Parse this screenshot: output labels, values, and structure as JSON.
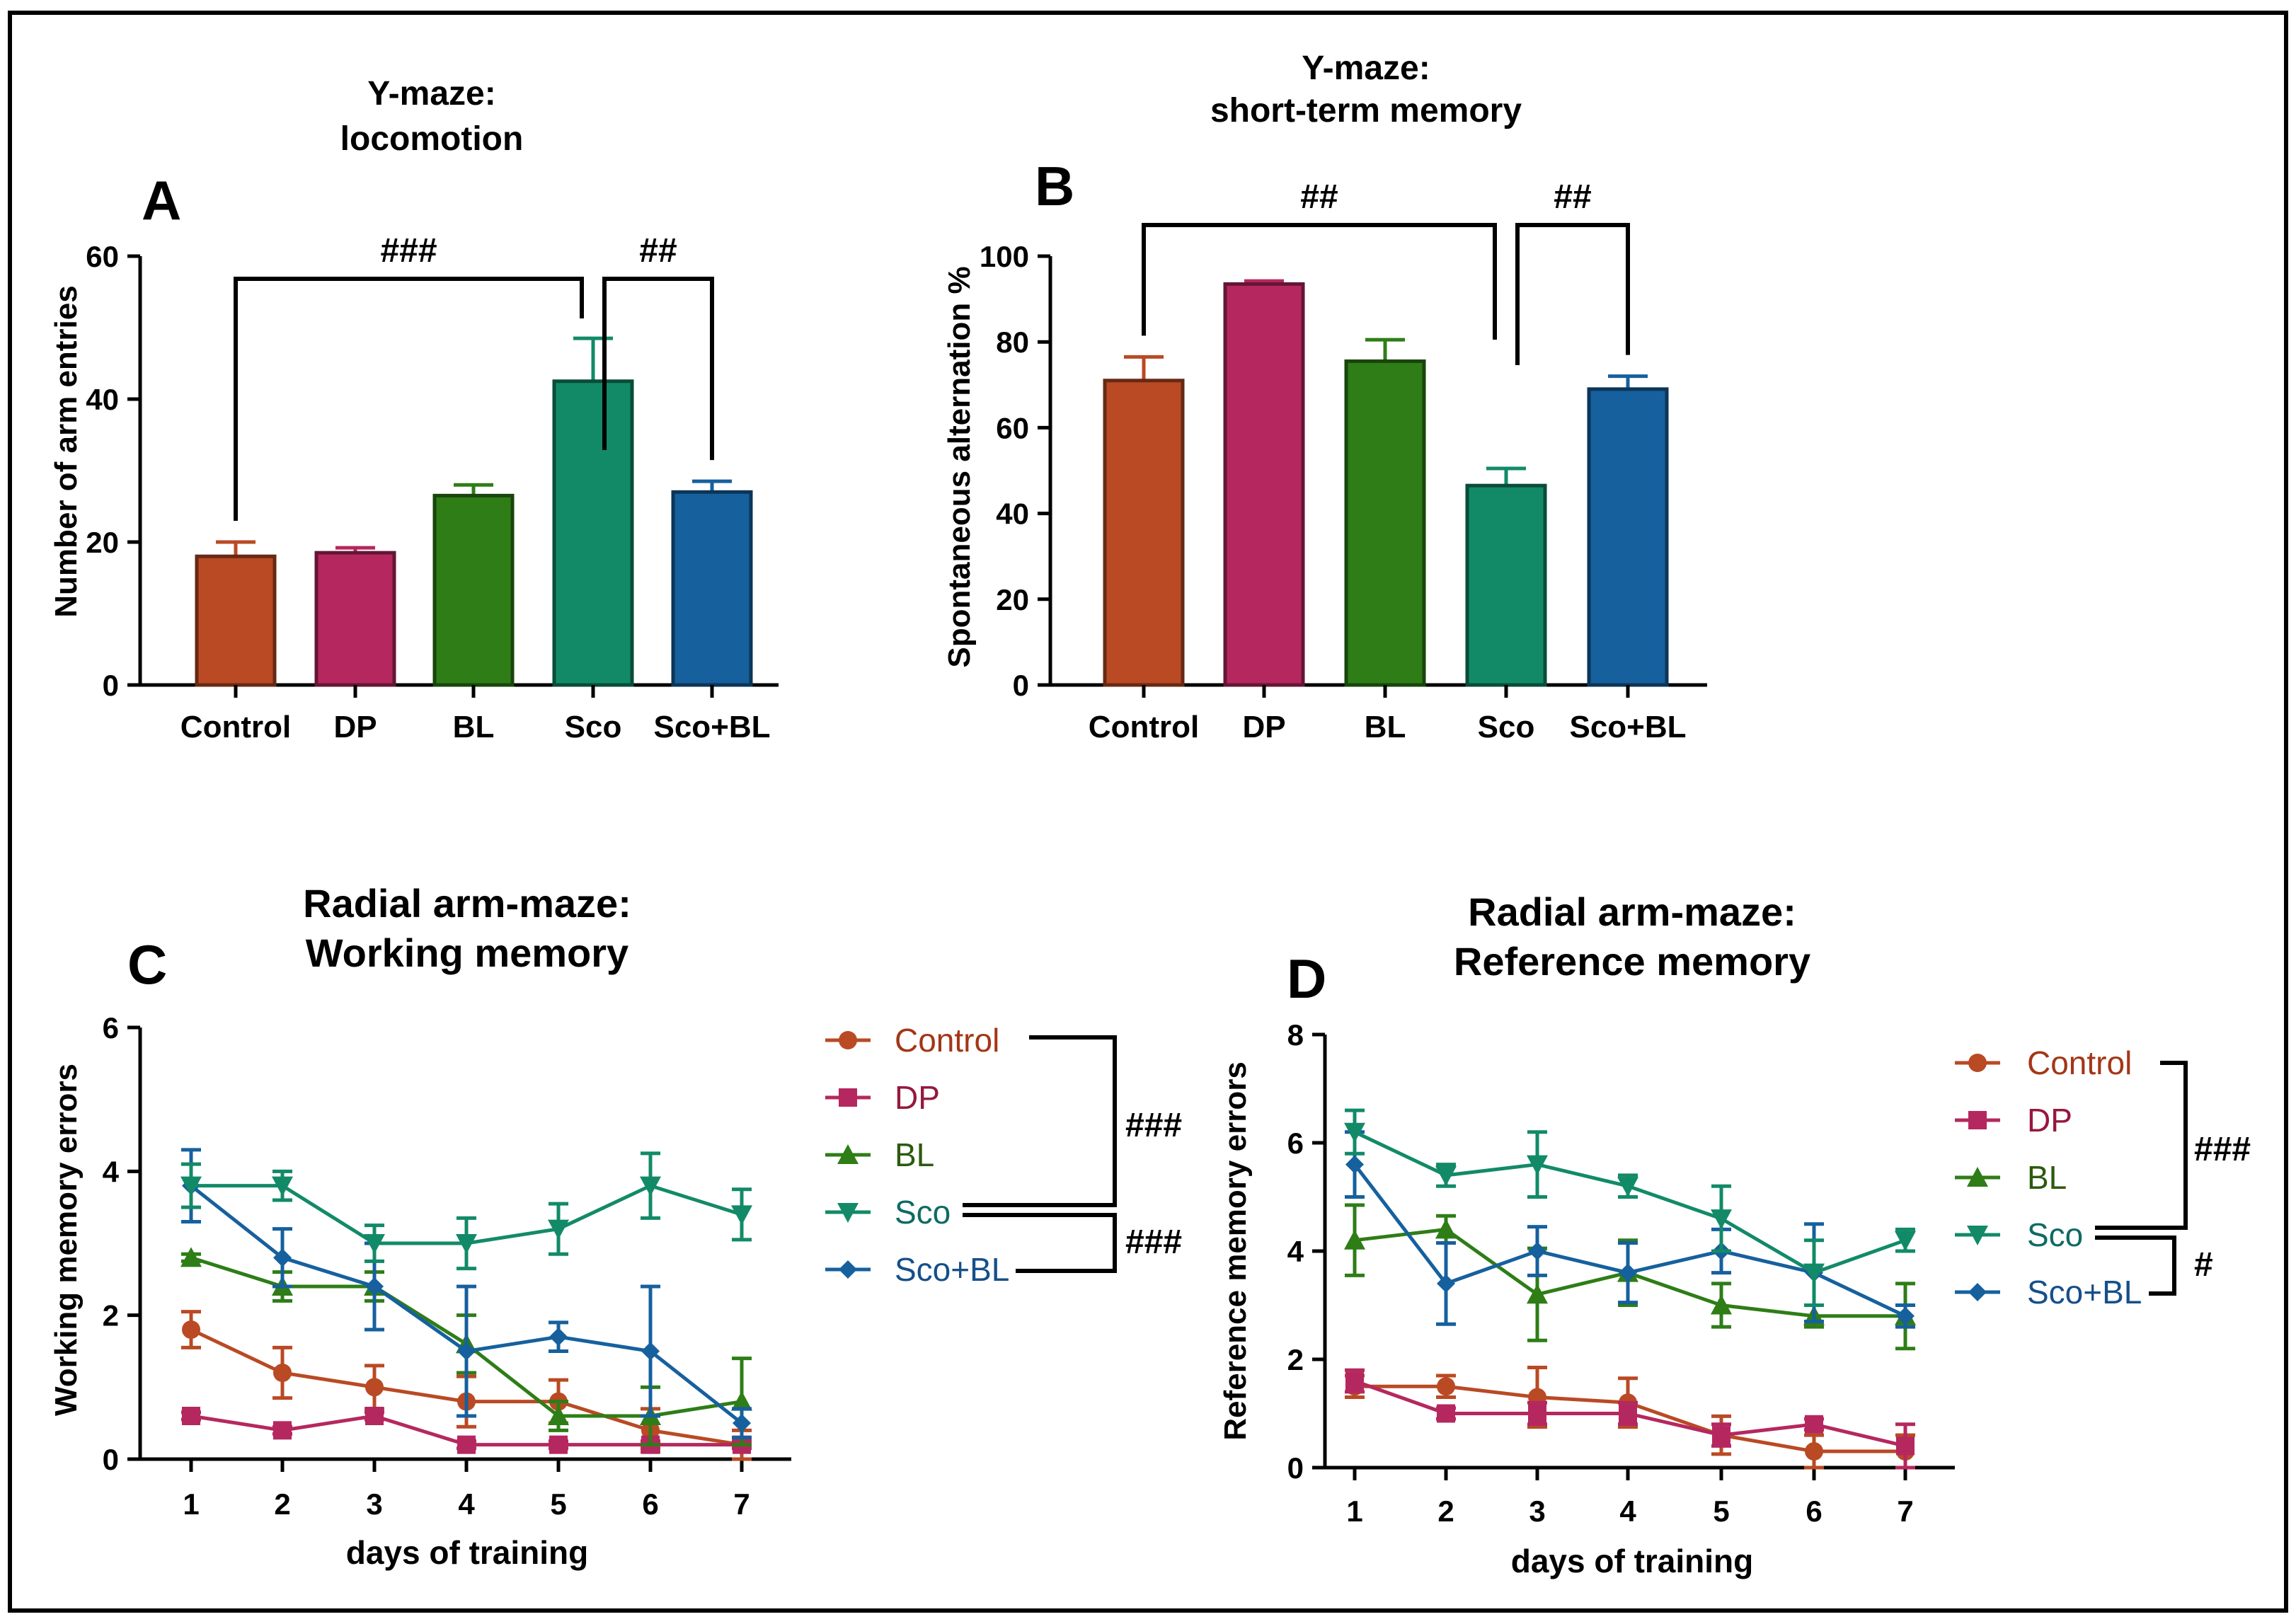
{
  "colors": {
    "Control": "#b94a24",
    "DP": "#b5285f",
    "BL": "#2e7d17",
    "Sco": "#128a68",
    "Sco+BL": "#16609e",
    "legend_text": {
      "Control": "#a33617",
      "DP": "#96183e",
      "BL": "#2c5a10",
      "Sco": "#0e6b63",
      "Sco+BL": "#164f8a"
    }
  },
  "chart_data": [
    {
      "id": "A",
      "type": "bar",
      "panel_label": "A",
      "title": [
        "Y-maze:",
        "locomotion"
      ],
      "ylabel": "Number of arm entries",
      "xlabel": "",
      "ylim": [
        0,
        60
      ],
      "yticks": [
        0,
        20,
        40,
        60
      ],
      "categories": [
        "Control",
        "DP",
        "BL",
        "Sco",
        "Sco+BL"
      ],
      "values": [
        18,
        18.5,
        26.5,
        42.5,
        27
      ],
      "errors": [
        2,
        0.7,
        1.5,
        6,
        1.5
      ],
      "significance": [
        {
          "from": "Control",
          "to": "Sco",
          "label": "###"
        },
        {
          "from": "Sco",
          "to": "Sco+BL",
          "label": "##"
        }
      ]
    },
    {
      "id": "B",
      "type": "bar",
      "panel_label": "B",
      "title": [
        "Y-maze:",
        "short-term memory"
      ],
      "ylabel": "Spontaneous alternation %",
      "xlabel": "",
      "ylim": [
        0,
        100
      ],
      "yticks": [
        0,
        20,
        40,
        60,
        80,
        100
      ],
      "categories": [
        "Control",
        "DP",
        "BL",
        "Sco",
        "Sco+BL"
      ],
      "values": [
        71,
        93.5,
        75.5,
        46.5,
        69
      ],
      "errors": [
        5.5,
        0.7,
        5,
        4,
        3
      ],
      "significance": [
        {
          "from": "Control",
          "to": "Sco",
          "label": "##"
        },
        {
          "from": "Sco",
          "to": "Sco+BL",
          "label": "##"
        }
      ]
    },
    {
      "id": "C",
      "type": "line",
      "panel_label": "C",
      "title": [
        "Radial arm-maze:",
        "Working memory"
      ],
      "ylabel": "Working memory errors",
      "xlabel": "days of training",
      "x": [
        1,
        2,
        3,
        4,
        5,
        6,
        7
      ],
      "ylim": [
        0,
        6
      ],
      "yticks": [
        0,
        2,
        4,
        6
      ],
      "series": [
        {
          "name": "Control",
          "marker": "circle",
          "values": [
            1.8,
            1.2,
            1.0,
            0.8,
            0.8,
            0.4,
            0.2
          ],
          "errors": [
            0.25,
            0.35,
            0.3,
            0.35,
            0.3,
            0.3,
            0.2
          ]
        },
        {
          "name": "DP",
          "marker": "square",
          "values": [
            0.6,
            0.4,
            0.6,
            0.2,
            0.2,
            0.2,
            0.2
          ],
          "errors": [
            0.05,
            0.05,
            0.05,
            0.05,
            0.05,
            0.05,
            0.05
          ]
        },
        {
          "name": "BL",
          "marker": "triangle-up",
          "values": [
            2.8,
            2.4,
            2.4,
            1.6,
            0.6,
            0.6,
            0.8
          ],
          "errors": [
            0.05,
            0.2,
            0.2,
            0.4,
            0.2,
            0.4,
            0.6
          ]
        },
        {
          "name": "Sco",
          "marker": "triangle-down",
          "values": [
            3.8,
            3.8,
            3.0,
            3.0,
            3.2,
            3.8,
            3.4
          ],
          "errors": [
            0.3,
            0.2,
            0.25,
            0.35,
            0.35,
            0.45,
            0.35
          ]
        },
        {
          "name": "Sco+BL",
          "marker": "diamond",
          "values": [
            3.8,
            2.8,
            2.4,
            1.5,
            1.7,
            1.5,
            0.5
          ],
          "errors": [
            0.5,
            0.4,
            0.6,
            0.9,
            0.2,
            0.9,
            0.2
          ]
        }
      ],
      "legend": [
        "Control",
        "DP",
        "BL",
        "Sco",
        "Sco+BL"
      ],
      "significance": [
        {
          "from": "Control",
          "to": "Sco",
          "label": "###"
        },
        {
          "from": "Sco",
          "to": "Sco+BL",
          "label": "###"
        }
      ]
    },
    {
      "id": "D",
      "type": "line",
      "panel_label": "D",
      "title": [
        "Radial arm-maze:",
        "Reference memory"
      ],
      "ylabel": "Reference memory errors",
      "xlabel": "days of training",
      "x": [
        1,
        2,
        3,
        4,
        5,
        6,
        7
      ],
      "ylim": [
        0,
        8
      ],
      "yticks": [
        0,
        2,
        4,
        6,
        8
      ],
      "series": [
        {
          "name": "Control",
          "marker": "circle",
          "values": [
            1.5,
            1.5,
            1.3,
            1.2,
            0.6,
            0.3,
            0.3
          ],
          "errors": [
            0.2,
            0.2,
            0.55,
            0.45,
            0.35,
            0.3,
            0.3
          ]
        },
        {
          "name": "DP",
          "marker": "square",
          "values": [
            1.6,
            1.0,
            1.0,
            1.0,
            0.6,
            0.8,
            0.4
          ],
          "errors": [
            0.2,
            0.1,
            0.2,
            0.2,
            0.2,
            0.1,
            0.4
          ]
        },
        {
          "name": "BL",
          "marker": "triangle-up",
          "values": [
            4.2,
            4.4,
            3.2,
            3.6,
            3.0,
            2.8,
            2.8
          ],
          "errors": [
            0.65,
            0.25,
            0.85,
            0.6,
            0.4,
            0.2,
            0.6
          ]
        },
        {
          "name": "Sco",
          "marker": "triangle-down",
          "values": [
            6.2,
            5.4,
            5.6,
            5.2,
            4.6,
            3.6,
            4.2
          ],
          "errors": [
            0.4,
            0.2,
            0.6,
            0.2,
            0.6,
            0.6,
            0.2
          ]
        },
        {
          "name": "Sco+BL",
          "marker": "diamond",
          "values": [
            5.6,
            3.4,
            4.0,
            3.6,
            4.0,
            3.6,
            2.8
          ],
          "errors": [
            0.6,
            0.75,
            0.45,
            0.55,
            0.4,
            0.9,
            0.2
          ]
        }
      ],
      "legend": [
        "Control",
        "DP",
        "BL",
        "Sco",
        "Sco+BL"
      ],
      "significance": [
        {
          "from": "Control",
          "to": "Sco",
          "label": "###"
        },
        {
          "from": "Sco",
          "to": "Sco+BL",
          "label": "#"
        }
      ]
    }
  ]
}
